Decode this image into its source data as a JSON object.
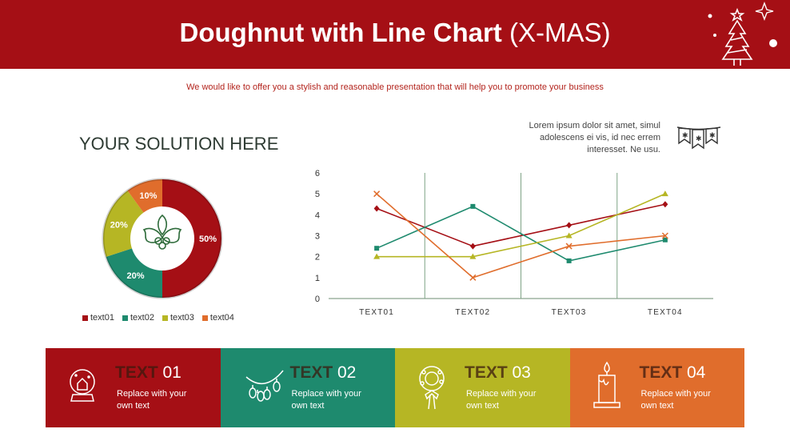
{
  "header": {
    "title_bold": "Doughnut with Line Chart",
    "title_rest": " (X-MAS)",
    "subtitle": "We would like to offer you a stylish and reasonable presentation that will help you to promote your business"
  },
  "section_title": "YOUR SOLUTION HERE",
  "lorem": "Lorem ipsum dolor sit amet, simul adolescens ei vis, id nec errem interesset. Ne usu.",
  "colors": {
    "red": "#a50f15",
    "green": "#1e8a6e",
    "olive": "#b6b624",
    "orange": "#e06d2c"
  },
  "chart_data": [
    {
      "type": "pie",
      "hole": true,
      "categories": [
        "text01",
        "text02",
        "text03",
        "text04"
      ],
      "values": [
        50,
        20,
        20,
        10
      ],
      "labels": [
        "50%",
        "20%",
        "20%",
        "10%"
      ],
      "colors": [
        "#a50f15",
        "#1e8a6e",
        "#b6b624",
        "#e06d2c"
      ],
      "legend": "bottom"
    },
    {
      "type": "line",
      "categories": [
        "TEXT01",
        "TEXT02",
        "TEXT03",
        "TEXT04"
      ],
      "ylim": [
        0,
        6
      ],
      "yticks": [
        "0",
        "1",
        "2",
        "3",
        "4",
        "5",
        "6"
      ],
      "series": [
        {
          "values": [
            4.3,
            2.5,
            3.5,
            4.5
          ],
          "color": "#a50f15",
          "marker": "diamond"
        },
        {
          "values": [
            2.4,
            4.4,
            1.8,
            2.8
          ],
          "color": "#1e8a6e",
          "marker": "square"
        },
        {
          "values": [
            2.0,
            2.0,
            3.0,
            5.0
          ],
          "color": "#b6b624",
          "marker": "triangle"
        },
        {
          "values": [
            5.0,
            1.0,
            2.5,
            3.0
          ],
          "color": "#e06d2c",
          "marker": "x"
        }
      ]
    }
  ],
  "boxes": [
    {
      "label_word": "TEXT",
      "label_num": " 01",
      "body": "Replace with your own text",
      "color": "#a50f15",
      "icon": "snow-globe-icon"
    },
    {
      "label_word": "TEXT",
      "label_num": " 02",
      "body": "Replace with your own text",
      "color": "#1e8a6e",
      "icon": "christmas-lights-icon"
    },
    {
      "label_word": "TEXT",
      "label_num": " 03",
      "body": "Replace with your own text",
      "color": "#b6b624",
      "icon": "wreath-icon"
    },
    {
      "label_word": "TEXT",
      "label_num": " 04",
      "body": "Replace with your own text",
      "color": "#e06d2c",
      "icon": "candle-icon"
    }
  ]
}
